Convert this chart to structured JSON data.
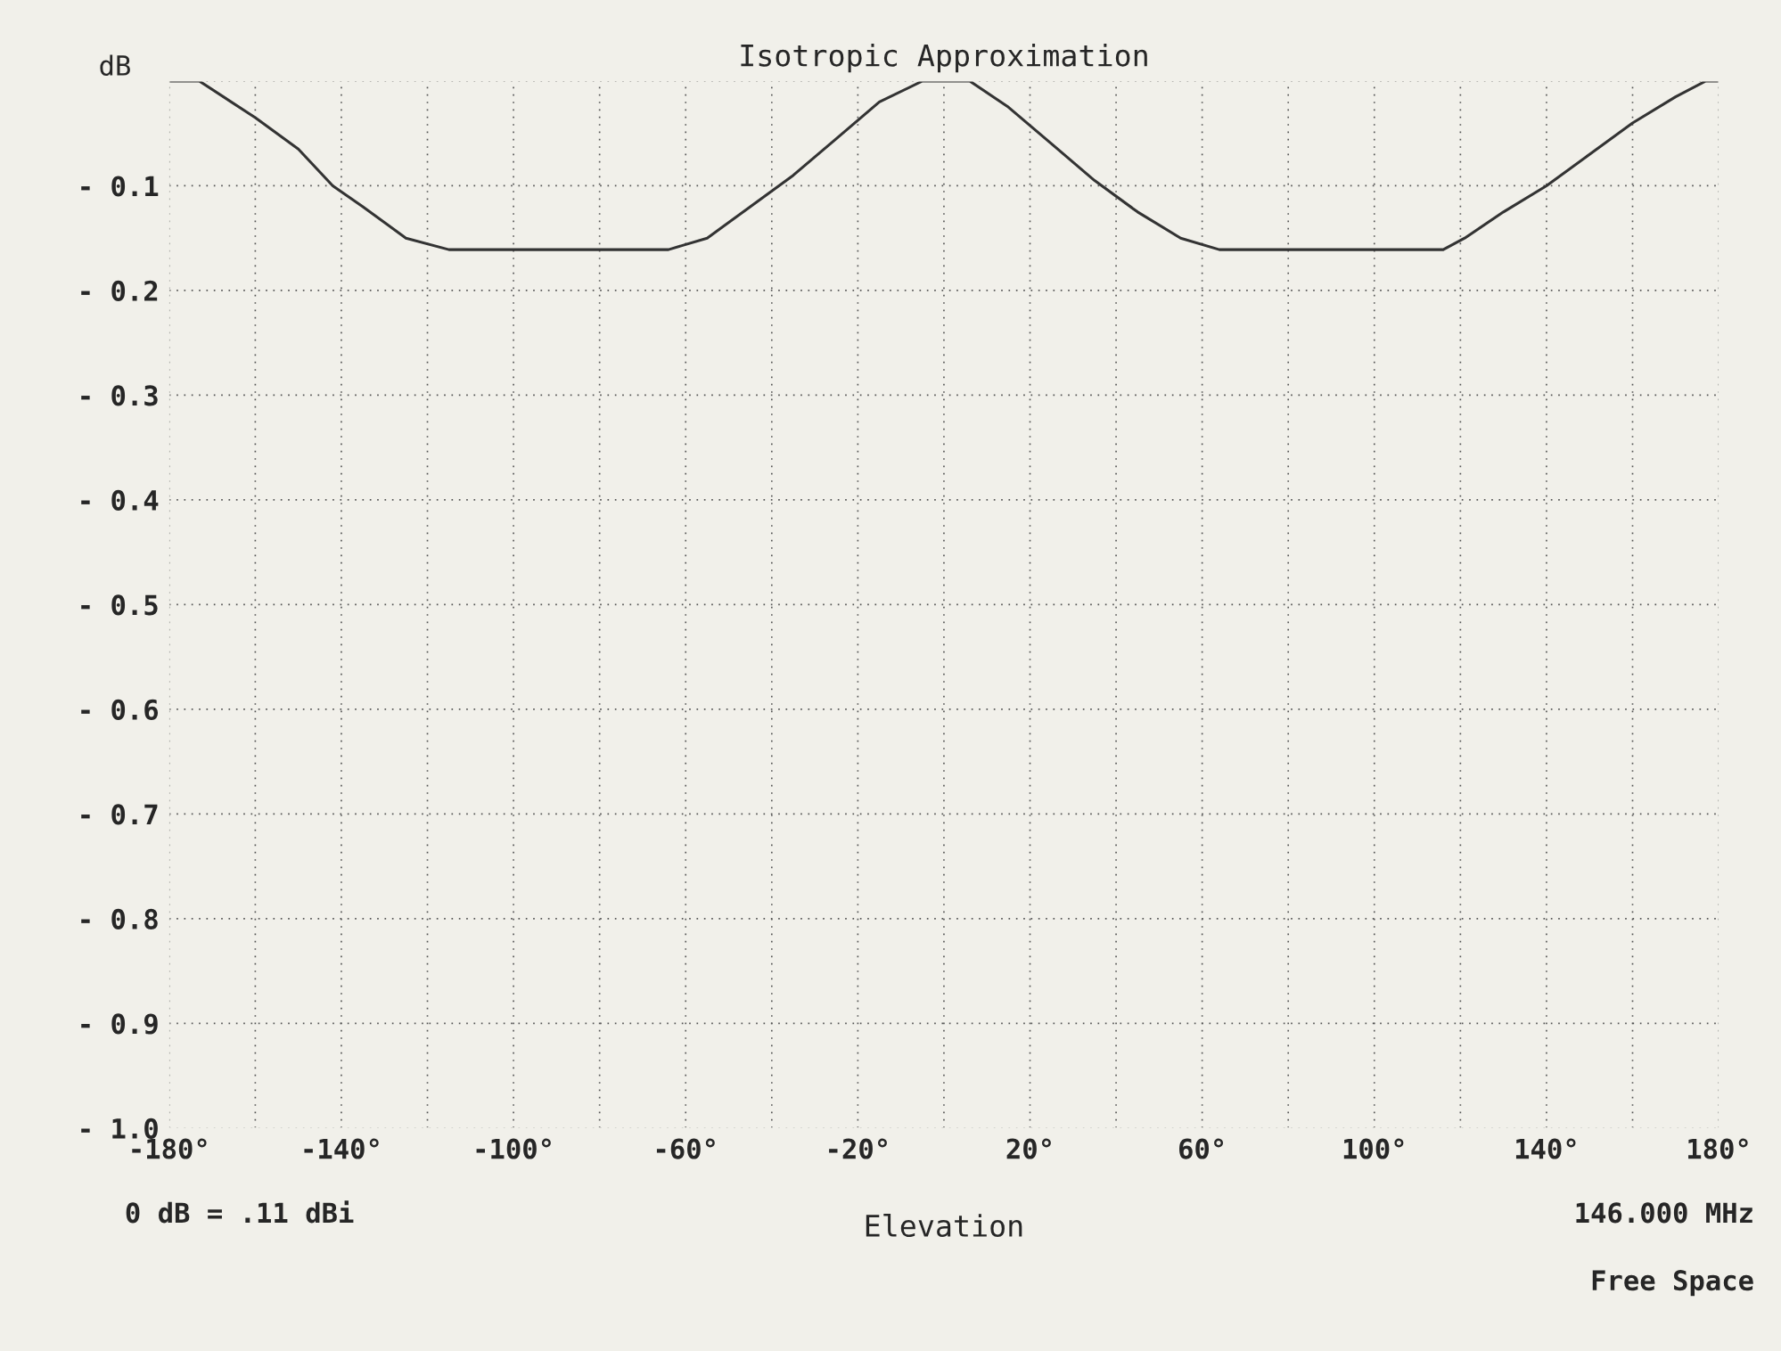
{
  "chart_data": {
    "type": "line",
    "title": "Isotropic Approximation",
    "xlabel": "Elevation",
    "ylabel": "dB",
    "annotations": [
      "0 dB = .11 dBi",
      "146.000 MHz",
      "Free Space"
    ],
    "series": [
      {
        "color": "#333333",
        "x": [
          -180,
          -173,
          -160,
          -150,
          -142,
          -135,
          -125,
          -115,
          -64,
          -55,
          -45,
          -35,
          -25,
          -15,
          -5,
          6,
          15,
          25,
          35,
          45,
          55,
          64,
          116,
          121,
          130,
          140,
          150,
          160,
          170,
          177,
          180
        ],
        "values": [
          0,
          0,
          -0.035,
          -0.065,
          -0.1,
          -0.12,
          -0.15,
          -0.161,
          -0.161,
          -0.15,
          -0.12,
          -0.09,
          -0.055,
          -0.02,
          0,
          0,
          -0.025,
          -0.06,
          -0.095,
          -0.125,
          -0.15,
          -0.161,
          -0.161,
          -0.15,
          -0.125,
          -0.1,
          -0.07,
          -0.04,
          -0.015,
          0,
          0
        ]
      }
    ],
    "xlim": [
      -180,
      180
    ],
    "xticks": [
      {
        "value": -180,
        "label": "-180°"
      },
      {
        "value": -160,
        "label": null
      },
      {
        "value": -140,
        "label": "-140°"
      },
      {
        "value": -120,
        "label": null
      },
      {
        "value": -100,
        "label": "-100°"
      },
      {
        "value": -80,
        "label": null
      },
      {
        "value": -60,
        "label": "-60°"
      },
      {
        "value": -40,
        "label": null
      },
      {
        "value": -20,
        "label": "-20°"
      },
      {
        "value": 0,
        "label": null
      },
      {
        "value": 20,
        "label": "20°"
      },
      {
        "value": 40,
        "label": null
      },
      {
        "value": 60,
        "label": "60°"
      },
      {
        "value": 80,
        "label": null
      },
      {
        "value": 100,
        "label": "100°"
      },
      {
        "value": 120,
        "label": null
      },
      {
        "value": 140,
        "label": "140°"
      },
      {
        "value": 160,
        "label": null
      },
      {
        "value": 180,
        "label": "180°"
      }
    ],
    "ylim": [
      -1.0,
      0
    ],
    "yticks": [
      {
        "value": 0,
        "label": null
      },
      {
        "value": -0.1,
        "label": "- 0.1"
      },
      {
        "value": -0.2,
        "label": "- 0.2"
      },
      {
        "value": -0.3,
        "label": "- 0.3"
      },
      {
        "value": -0.4,
        "label": "- 0.4"
      },
      {
        "value": -0.5,
        "label": "- 0.5"
      },
      {
        "value": -0.6,
        "label": "- 0.6"
      },
      {
        "value": -0.7,
        "label": "- 0.7"
      },
      {
        "value": -0.8,
        "label": "- 0.8"
      },
      {
        "value": -0.9,
        "label": "- 0.9"
      },
      {
        "value": -1.0,
        "label": "- 1.0"
      }
    ],
    "grid": true,
    "line_style": "solid",
    "marker": "none"
  }
}
